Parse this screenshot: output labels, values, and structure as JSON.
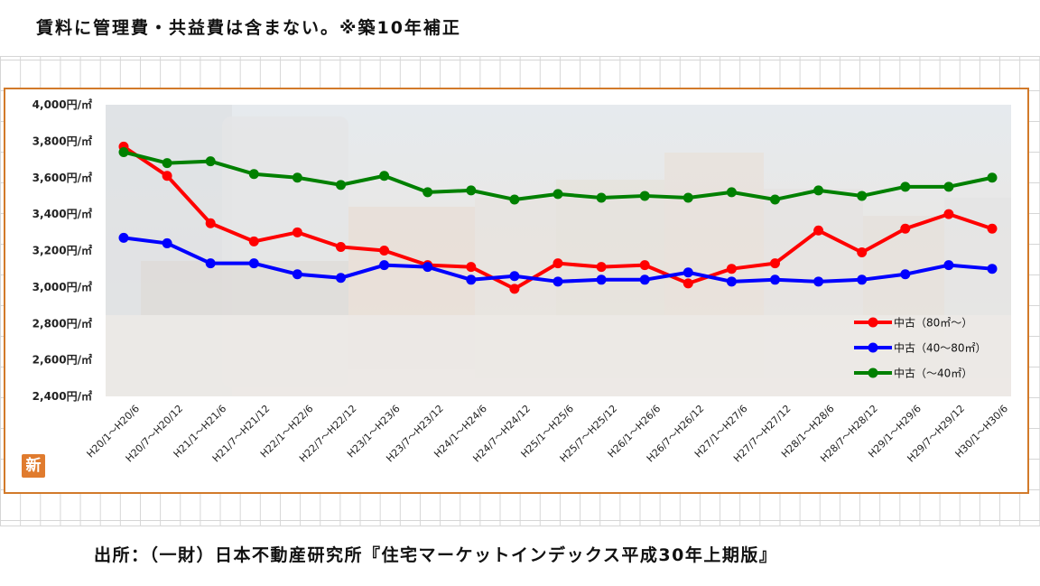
{
  "note": "賃料に管理費・共益費は含まない。※築10年補正",
  "source": "出所：（一財）日本不動産研究所『住宅マーケットインデックス平成30年上期版』",
  "badge": "新",
  "colors": {
    "red": "#ff0000",
    "blue": "#0000ff",
    "green": "#008000",
    "frame": "#d27a2a"
  },
  "chart_data": {
    "type": "line",
    "title": "",
    "xlabel": "",
    "ylabel": "",
    "ylim": [
      2400,
      4000
    ],
    "yticks": [
      {
        "v": 2400,
        "label": "2,400円/㎡"
      },
      {
        "v": 2600,
        "label": "2,600円/㎡"
      },
      {
        "v": 2800,
        "label": "2,800円/㎡"
      },
      {
        "v": 3000,
        "label": "3,000円/㎡"
      },
      {
        "v": 3200,
        "label": "3,200円/㎡"
      },
      {
        "v": 3400,
        "label": "3,400円/㎡"
      },
      {
        "v": 3600,
        "label": "3,600円/㎡"
      },
      {
        "v": 3800,
        "label": "3,800円/㎡"
      },
      {
        "v": 4000,
        "label": "4,000円/㎡"
      }
    ],
    "categories": [
      "H20/1～H20/6",
      "H20/7～H20/12",
      "H21/1～H21/6",
      "H21/7～H21/12",
      "H22/1～H22/6",
      "H22/7～H22/12",
      "H23/1～H23/6",
      "H23/7～H23/12",
      "H24/1～H24/6",
      "H24/7～H24/12",
      "H25/1～H25/6",
      "H25/7～H25/12",
      "H26/1～H26/6",
      "H26/7～H26/12",
      "H27/1～H27/6",
      "H27/7～H27/12",
      "H28/1～H28/6",
      "H28/7～H28/12",
      "H29/1～H29/6",
      "H29/7～H29/12",
      "H30/1～H30/6"
    ],
    "series": [
      {
        "name": "中古（80㎡～）",
        "color": "#ff0000",
        "values": [
          3770,
          3610,
          3350,
          3250,
          3300,
          3220,
          3200,
          3120,
          3110,
          2990,
          3130,
          3110,
          3120,
          3020,
          3100,
          3130,
          3310,
          3190,
          3320,
          3400,
          3320
        ]
      },
      {
        "name": "中古（40～80㎡）",
        "color": "#0000ff",
        "values": [
          3270,
          3240,
          3130,
          3130,
          3070,
          3050,
          3120,
          3110,
          3040,
          3060,
          3030,
          3040,
          3040,
          3080,
          3030,
          3040,
          3030,
          3040,
          3070,
          3120,
          3100
        ]
      },
      {
        "name": "中古（～40㎡）",
        "color": "#008000",
        "values": [
          3740,
          3680,
          3690,
          3620,
          3600,
          3560,
          3610,
          3520,
          3530,
          3480,
          3510,
          3490,
          3500,
          3490,
          3520,
          3480,
          3530,
          3500,
          3550,
          3550,
          3600
        ]
      }
    ],
    "legend_position": "right-bottom",
    "grid": false
  }
}
